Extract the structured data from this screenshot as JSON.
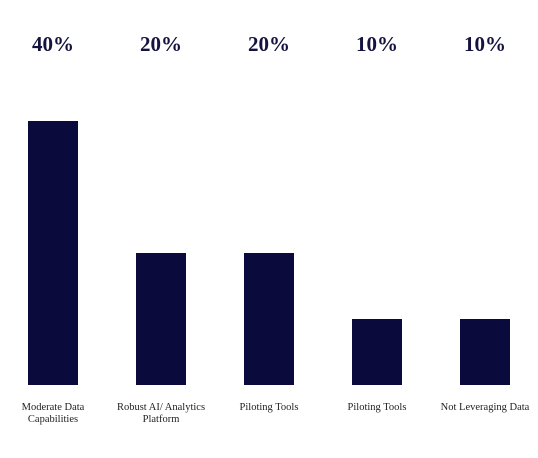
{
  "chart_data": {
    "type": "bar",
    "categories": [
      "Moderate Data Capabilities",
      "Robust AI/ Analytics Platform",
      "Piloting Tools",
      "Piloting Tools",
      "Not Leveraging Data"
    ],
    "values": [
      40,
      20,
      20,
      10,
      10
    ],
    "value_labels": [
      "40%",
      "20%",
      "20%",
      "10%",
      "10%"
    ],
    "color": "#0b0a3d",
    "ylim": [
      0,
      40
    ]
  }
}
